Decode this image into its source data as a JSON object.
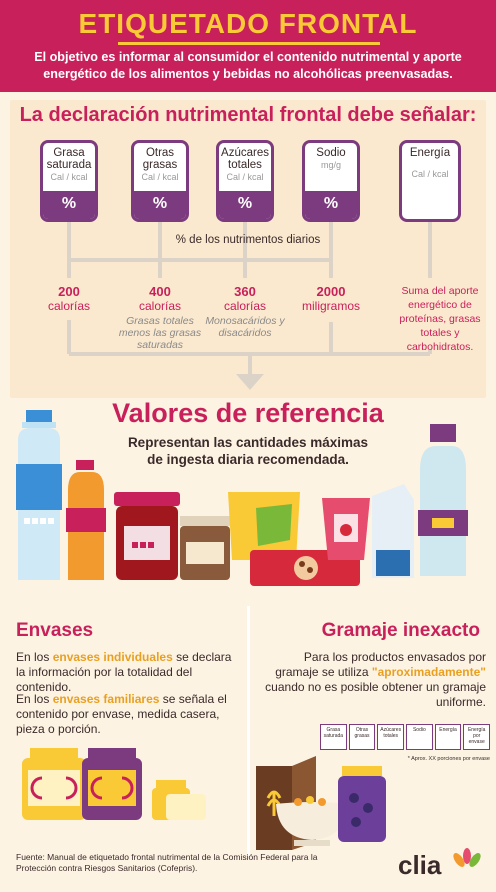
{
  "header": {
    "title": "ETIQUETADO FRONTAL",
    "subtitle": "El objetivo es informar al consumidor el contenido nutrimental y aporte energético de los alimentos y bebidas no alcohólicas preenvasadas."
  },
  "declaration": {
    "title": "La declaración nutrimental frontal debe señalar:",
    "labels": [
      {
        "name": "Grasa saturada",
        "unit": "Cal / kcal",
        "value": "%"
      },
      {
        "name": "Otras grasas",
        "unit": "Cal / kcal",
        "value": "%"
      },
      {
        "name": "Azúcares totales",
        "unit": "Cal / kcal",
        "value": "%"
      },
      {
        "name": "Sodio",
        "unit": "mg/g",
        "value": "%"
      },
      {
        "name": "Energía",
        "unit": "Cal / kcal",
        "value": ""
      }
    ],
    "percent_caption": "% de los nutrimentos diarios",
    "values": [
      {
        "number": "200",
        "unit": "calorías",
        "description": ""
      },
      {
        "number": "400",
        "unit": "calorías",
        "description": "Grasas totales menos las grasas saturadas"
      },
      {
        "number": "360",
        "unit": "calorías",
        "description": "Monosacáridos y disacáridos"
      },
      {
        "number": "2000",
        "unit": "miligramos",
        "description": ""
      }
    ],
    "energy_note": "Suma del aporte energético de proteínas, grasas totales y carbohidratos."
  },
  "reference": {
    "title": "Valores de referencia",
    "description": "Representan las cantidades máximas de ingesta diaria recomendada."
  },
  "envases": {
    "title": "Envases",
    "p1_pre": "En los ",
    "p1_hl": "envases individuales",
    "p1_post": " se declara la información por la totalidad del contenido.",
    "p2_pre": "En los ",
    "p2_hl": "envases familiares",
    "p2_post": " se señala el contenido por envase, medida casera, pieza o porción."
  },
  "gramaje": {
    "title": "Gramaje inexacto",
    "p_pre": "Para los productos envasados por gramaje se utiliza ",
    "p_hl": "\"aproximadamente\"",
    "p_post": " cuando no es posible obtener un gramaje uniforme.",
    "mini_labels": [
      "Grasa saturada",
      "Otras grasas",
      "Azúcares totales",
      "Sodio",
      "Energía",
      "Energía por envase"
    ],
    "mini_note": "* Aprox. XX porciones por envase"
  },
  "footer": {
    "source": "Fuente: Manual de etiquetado frontal nutrimental de la Comisión Federal para la Protección contra Riesgos Sanitarios (Cofepris).",
    "logo": "clia"
  },
  "colors": {
    "magenta": "#c8205a",
    "purple": "#7c3b7e",
    "yellow": "#f9c936",
    "cream": "#fdf3e3"
  }
}
